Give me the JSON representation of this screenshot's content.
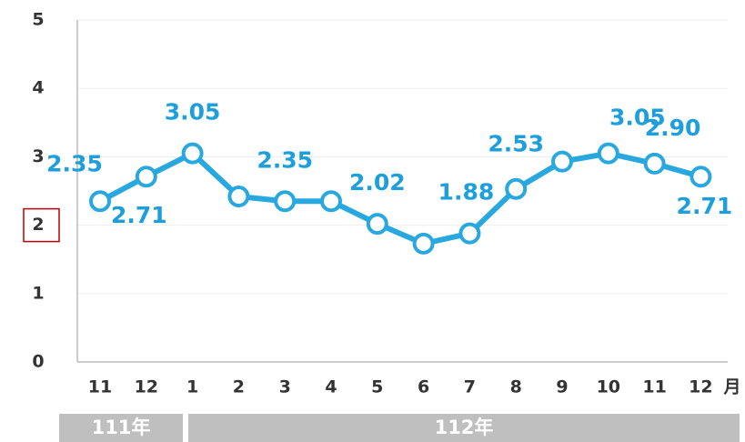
{
  "chart_data": {
    "type": "line",
    "categories": [
      "11",
      "12",
      "1",
      "2",
      "3",
      "4",
      "5",
      "6",
      "7",
      "8",
      "9",
      "10",
      "11",
      "12"
    ],
    "x_unit": "月",
    "year_groups": [
      "111年",
      "112年"
    ],
    "series": [
      {
        "color": "#29a8e0",
        "values": [
          2.35,
          2.71,
          3.05,
          2.42,
          2.35,
          2.35,
          2.02,
          1.73,
          1.88,
          2.53,
          2.93,
          3.05,
          2.9,
          2.71
        ],
        "value_labels": [
          "2.35",
          "2.71",
          "3.05",
          null,
          "2.35",
          null,
          "2.02",
          null,
          "1.88",
          "2.53",
          null,
          "3.05",
          "2.90",
          "2.71"
        ]
      }
    ],
    "ylim": [
      0,
      5
    ],
    "yticks": [
      0,
      1,
      2,
      3,
      4,
      5
    ],
    "grid": true,
    "highlight_tick": 2
  }
}
